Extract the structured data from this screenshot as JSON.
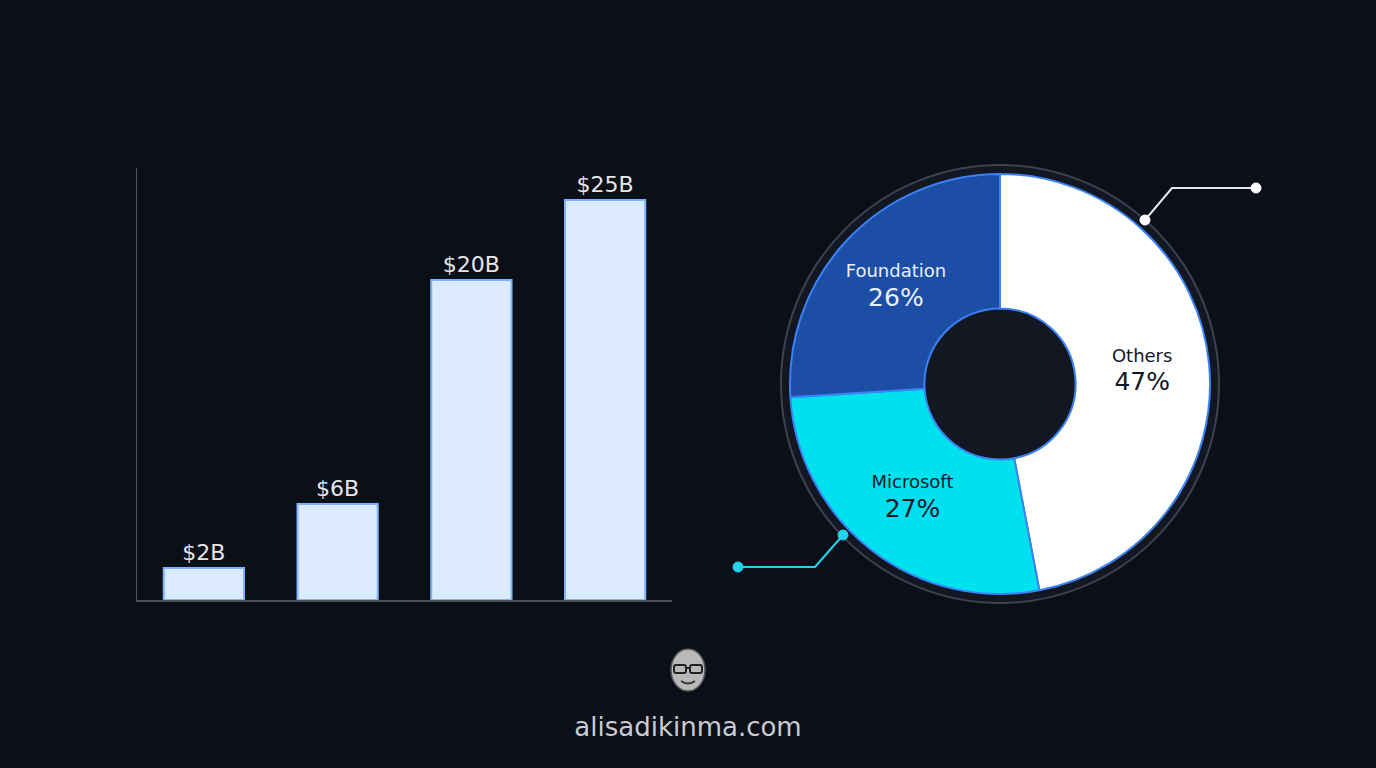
{
  "chart_data": [
    {
      "type": "bar",
      "categories": [
        null,
        null,
        null,
        null
      ],
      "values": [
        2,
        6,
        20,
        25
      ],
      "value_labels": [
        "$2B",
        "$6B",
        "$20B",
        "$25B"
      ],
      "data_labels": true,
      "tick_labels": false,
      "grid": false,
      "ylim": [
        0,
        27
      ],
      "color": "#dbeafe"
    },
    {
      "type": "pie",
      "categories": [
        "Others",
        "Microsoft",
        "Foundation"
      ],
      "values": [
        47,
        27,
        26
      ],
      "value_labels": [
        "47%",
        "27%",
        "26%"
      ],
      "data_labels": true,
      "colors": [
        "#ffffff",
        "#00e1f0",
        "#1d4ea6"
      ]
    }
  ],
  "footer": {
    "text": "alisadikinma.com"
  }
}
